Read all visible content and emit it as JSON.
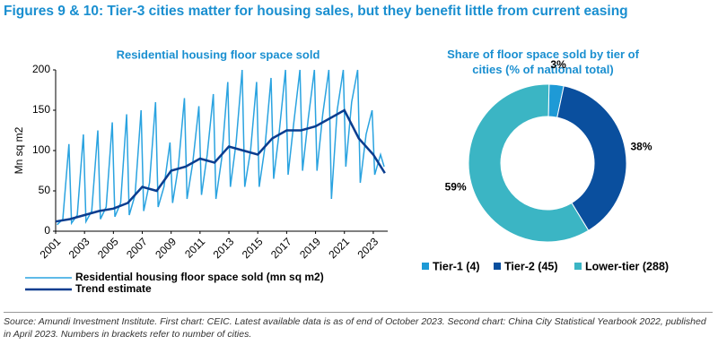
{
  "header": {
    "title": "Figures 9 & 10: Tier-3 cities matter for housing sales, but they benefit little from current easing"
  },
  "chart_data": [
    {
      "type": "line",
      "title": "Residential housing floor space sold",
      "y_label": "Mn sq m2",
      "xlim": [
        2001,
        2024
      ],
      "xticks": [
        2001,
        2003,
        2005,
        2007,
        2009,
        2011,
        2013,
        2015,
        2017,
        2019,
        2021,
        2023
      ],
      "ylim": [
        0,
        200
      ],
      "yticks": [
        0,
        50,
        100,
        150,
        200
      ],
      "series": [
        {
          "name": "Residential housing floor space sold (mn sq m2)",
          "color": "#2aa3e0",
          "x": [
            2001.1,
            2001.5,
            2001.92,
            2002.1,
            2002.5,
            2002.92,
            2003.1,
            2003.5,
            2003.92,
            2004.1,
            2004.5,
            2004.92,
            2005.1,
            2005.5,
            2005.92,
            2006.1,
            2006.5,
            2006.92,
            2007.1,
            2007.5,
            2007.92,
            2008.1,
            2008.5,
            2008.92,
            2009.1,
            2009.5,
            2009.92,
            2010.1,
            2010.5,
            2010.92,
            2011.1,
            2011.5,
            2011.92,
            2012.1,
            2012.5,
            2012.92,
            2013.1,
            2013.5,
            2013.92,
            2014.1,
            2014.5,
            2014.92,
            2015.1,
            2015.5,
            2015.92,
            2016.1,
            2016.5,
            2016.92,
            2017.1,
            2017.5,
            2017.92,
            2018.1,
            2018.5,
            2018.92,
            2019.1,
            2019.5,
            2019.92,
            2020.1,
            2020.5,
            2020.92,
            2021.1,
            2021.5,
            2021.92,
            2022.1,
            2022.5,
            2022.92,
            2023.1,
            2023.5,
            2023.75
          ],
          "values": [
            8,
            15,
            108,
            10,
            20,
            120,
            12,
            25,
            125,
            15,
            30,
            135,
            18,
            35,
            145,
            20,
            45,
            150,
            25,
            60,
            160,
            30,
            55,
            110,
            35,
            80,
            165,
            40,
            85,
            155,
            45,
            95,
            170,
            40,
            90,
            185,
            55,
            110,
            200,
            55,
            100,
            185,
            55,
            105,
            190,
            65,
            125,
            200,
            70,
            135,
            200,
            75,
            140,
            200,
            75,
            145,
            200,
            40,
            150,
            200,
            80,
            160,
            200,
            60,
            120,
            150,
            70,
            95,
            80
          ]
        },
        {
          "name": "Trend estimate",
          "color": "#0a3d8f",
          "x": [
            2001,
            2002,
            2003,
            2004,
            2005,
            2006,
            2007,
            2008,
            2009,
            2010,
            2011,
            2012,
            2013,
            2014,
            2015,
            2016,
            2017,
            2018,
            2019,
            2020,
            2021,
            2022,
            2023,
            2023.8
          ],
          "values": [
            12,
            15,
            20,
            25,
            28,
            35,
            55,
            50,
            75,
            80,
            90,
            85,
            105,
            100,
            95,
            115,
            125,
            125,
            130,
            140,
            150,
            115,
            95,
            72
          ]
        }
      ]
    },
    {
      "type": "donut",
      "title": "Share of floor space sold by tier of cities (% of national total)",
      "categories": [
        "Tier-1 (4)",
        "Tier-2 (45)",
        "Lower-tier (288)"
      ],
      "values": [
        3,
        38,
        59
      ],
      "value_labels": [
        "3%",
        "38%",
        "59%"
      ],
      "colors": [
        "#1e9ad6",
        "#0a4f9e",
        "#3bb5c4"
      ]
    }
  ],
  "footer": {
    "source": "Source: Amundi Investment Institute. First chart: CEIC. Latest available data is as of end of October 2023. Second chart: China City Statistical Yearbook 2022, published in April 2023. Numbers in brackets refer to number of cities."
  }
}
